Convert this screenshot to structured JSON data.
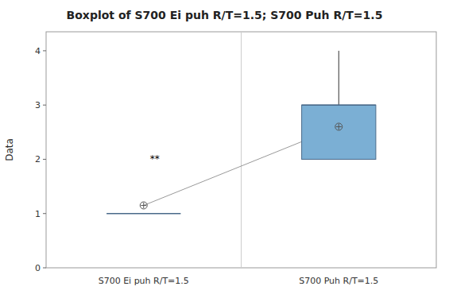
{
  "chart_data": {
    "type": "box",
    "title": "Boxplot of S700 Ei puh R/T=1.5; S700 Puh R/T=1.5",
    "ylabel": "Data",
    "categories": [
      "S700 Ei puh R/T=1.5",
      "S700 Puh R/T=1.5"
    ],
    "boxes": [
      {
        "q1": 1.0,
        "median": 1.0,
        "q3": 1.0,
        "whisker_low": 1.0,
        "whisker_high": 1.0,
        "mean": 1.15
      },
      {
        "q1": 2.0,
        "median": 3.0,
        "q3": 3.0,
        "whisker_low": 2.0,
        "whisker_high": 4.0,
        "mean": 2.6
      }
    ],
    "annotations": [
      {
        "text": "**",
        "x": "S700 Ei puh R/T=1.5",
        "y": 2.0
      }
    ],
    "colors": [
      "#ffffff",
      "#7bafd4"
    ],
    "ylim": [
      0,
      4.35
    ],
    "yticks": [
      0,
      1,
      2,
      3,
      4
    ],
    "grid": false
  }
}
